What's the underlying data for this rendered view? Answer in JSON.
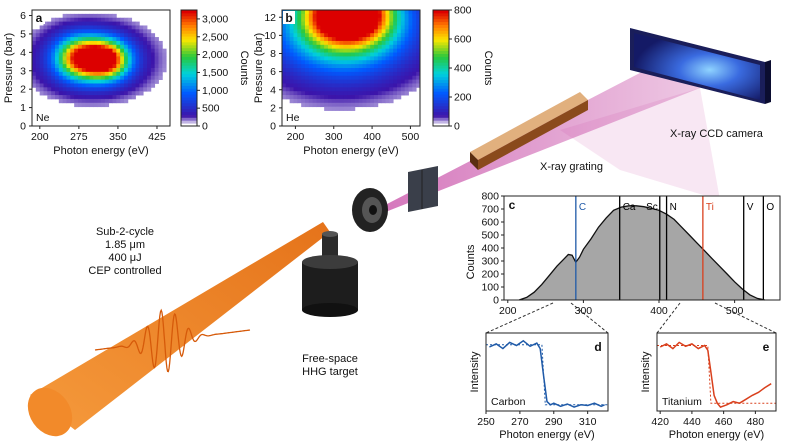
{
  "colors": {
    "beam": "#f07f1a",
    "xray": "#c23b9e",
    "carbon": "#1f5aa8",
    "titanium": "#d9401d",
    "spectrum_fill": "#a6a6a6"
  },
  "labels": {
    "source": [
      "Sub-2-cycle",
      "1.85 μm",
      "400 μJ",
      "CEP controlled"
    ],
    "target": [
      "Free-space",
      "HHG target"
    ],
    "grating": "X-ray grating",
    "camera": "X-ray CCD camera"
  },
  "chart_data": [
    {
      "panel": "a",
      "type": "heatmap",
      "corner_label": "Ne",
      "xlabel": "Photon energy (eV)",
      "ylabel": "Pressure (bar)",
      "xticks": [
        "200",
        "275",
        "350",
        "425"
      ],
      "yticks": [
        "0",
        "1",
        "2",
        "3",
        "4",
        "5",
        "6"
      ],
      "xlim": [
        185,
        450
      ],
      "ylim": [
        0,
        6.3
      ],
      "colorbar": {
        "label": "Counts",
        "ticks": [
          "0",
          "500",
          "1,000",
          "1,500",
          "2,000",
          "2,500",
          "3,000"
        ],
        "max": 3250
      },
      "blobs": [
        {
          "x": 325,
          "y": 3.6,
          "sx": 30,
          "sy": 0.7,
          "peak": 3200
        },
        {
          "x": 275,
          "y": 3.7,
          "sx": 30,
          "sy": 0.75,
          "peak": 2300
        },
        {
          "x": 300,
          "y": 3.6,
          "sx": 75,
          "sy": 1.3,
          "peak": 800
        }
      ]
    },
    {
      "panel": "b",
      "type": "heatmap",
      "corner_label": "He",
      "xlabel": "Photon energy (eV)",
      "ylabel": "Pressure (bar)",
      "xticks": [
        "200",
        "300",
        "400",
        "500"
      ],
      "yticks": [
        "0",
        "2",
        "4",
        "6",
        "8",
        "10",
        "12"
      ],
      "xlim": [
        165,
        525
      ],
      "ylim": [
        0,
        12.8
      ],
      "colorbar": {
        "label": "Counts",
        "ticks": [
          "0",
          "200",
          "400",
          "600",
          "800"
        ],
        "max": 800
      },
      "blobs": [
        {
          "x": 340,
          "y": 12.5,
          "sx": 70,
          "sy": 2.2,
          "peak": 780
        },
        {
          "x": 330,
          "y": 11.5,
          "sx": 110,
          "sy": 3.5,
          "peak": 420
        },
        {
          "x": 310,
          "y": 10,
          "sx": 150,
          "sy": 4.2,
          "peak": 150
        }
      ]
    },
    {
      "panel": "c",
      "type": "area",
      "xlabel": "",
      "ylabel": "Counts",
      "xticks": [
        "200",
        "300",
        "400",
        "500"
      ],
      "yticks": [
        "0",
        "100",
        "200",
        "300",
        "400",
        "500",
        "600",
        "700",
        "800"
      ],
      "xlim": [
        195,
        560
      ],
      "ylim": [
        0,
        800
      ],
      "x": [
        215,
        225,
        235,
        245,
        255,
        265,
        275,
        280,
        285,
        290,
        295,
        300,
        310,
        320,
        330,
        340,
        350,
        360,
        370,
        380,
        390,
        400,
        410,
        420,
        430,
        440,
        450,
        460,
        470,
        480,
        490,
        500,
        510,
        520,
        530,
        540
      ],
      "y": [
        0,
        20,
        60,
        120,
        190,
        260,
        320,
        350,
        345,
        290,
        330,
        390,
        470,
        560,
        630,
        690,
        715,
        725,
        725,
        718,
        705,
        690,
        660,
        620,
        560,
        500,
        440,
        380,
        320,
        260,
        200,
        140,
        85,
        40,
        12,
        0
      ],
      "edges": [
        {
          "name": "C",
          "x": 290,
          "color": "#1f5aa8"
        },
        {
          "name": "Ca",
          "x": 348,
          "color": "#000000"
        },
        {
          "name": "Sc",
          "x": 401,
          "color": "#000000"
        },
        {
          "name": "N",
          "x": 410,
          "color": "#000000"
        },
        {
          "name": "Ti",
          "x": 458,
          "color": "#d9401d"
        },
        {
          "name": "V",
          "x": 512,
          "color": "#000000"
        },
        {
          "name": "O",
          "x": 538,
          "color": "#000000"
        }
      ]
    },
    {
      "panel": "d",
      "type": "line",
      "inset_label": "Carbon",
      "xlabel": "Photon energy (eV)",
      "ylabel": "Intensity",
      "xticks": [
        "250",
        "270",
        "290",
        "310"
      ],
      "xlim": [
        250,
        322
      ],
      "ylim": [
        0,
        1
      ],
      "series": [
        {
          "color": "#1f5aa8",
          "x": [
            252,
            256,
            260,
            264,
            268,
            272,
            276,
            280,
            282,
            284,
            286,
            288,
            290,
            294,
            298,
            302,
            306,
            310,
            314,
            318,
            320
          ],
          "y": [
            0.82,
            0.86,
            0.8,
            0.88,
            0.84,
            0.9,
            0.83,
            0.87,
            0.8,
            0.45,
            0.12,
            0.08,
            0.1,
            0.06,
            0.09,
            0.05,
            0.08,
            0.07,
            0.1,
            0.06,
            0.08
          ]
        }
      ],
      "fit": {
        "x": [
          250,
          283,
          285,
          322
        ],
        "y": [
          0.85,
          0.85,
          0.08,
          0.08
        ]
      }
    },
    {
      "panel": "e",
      "type": "line",
      "inset_label": "Titanium",
      "xlabel": "Photon energy (eV)",
      "ylabel": "Intensity",
      "xticks": [
        "420",
        "440",
        "460",
        "480"
      ],
      "xlim": [
        418,
        493
      ],
      "ylim": [
        0,
        1
      ],
      "series": [
        {
          "color": "#d9401d",
          "x": [
            420,
            424,
            428,
            432,
            436,
            440,
            444,
            448,
            450,
            452,
            454,
            456,
            458,
            462,
            466,
            470,
            474,
            478,
            482,
            486,
            490
          ],
          "y": [
            0.82,
            0.86,
            0.8,
            0.88,
            0.83,
            0.86,
            0.8,
            0.84,
            0.78,
            0.5,
            0.2,
            0.1,
            0.05,
            0.08,
            0.12,
            0.1,
            0.15,
            0.2,
            0.24,
            0.3,
            0.35
          ]
        }
      ],
      "fit": {
        "x": [
          418,
          450,
          452,
          493
        ],
        "y": [
          0.84,
          0.84,
          0.1,
          0.1
        ]
      }
    }
  ]
}
